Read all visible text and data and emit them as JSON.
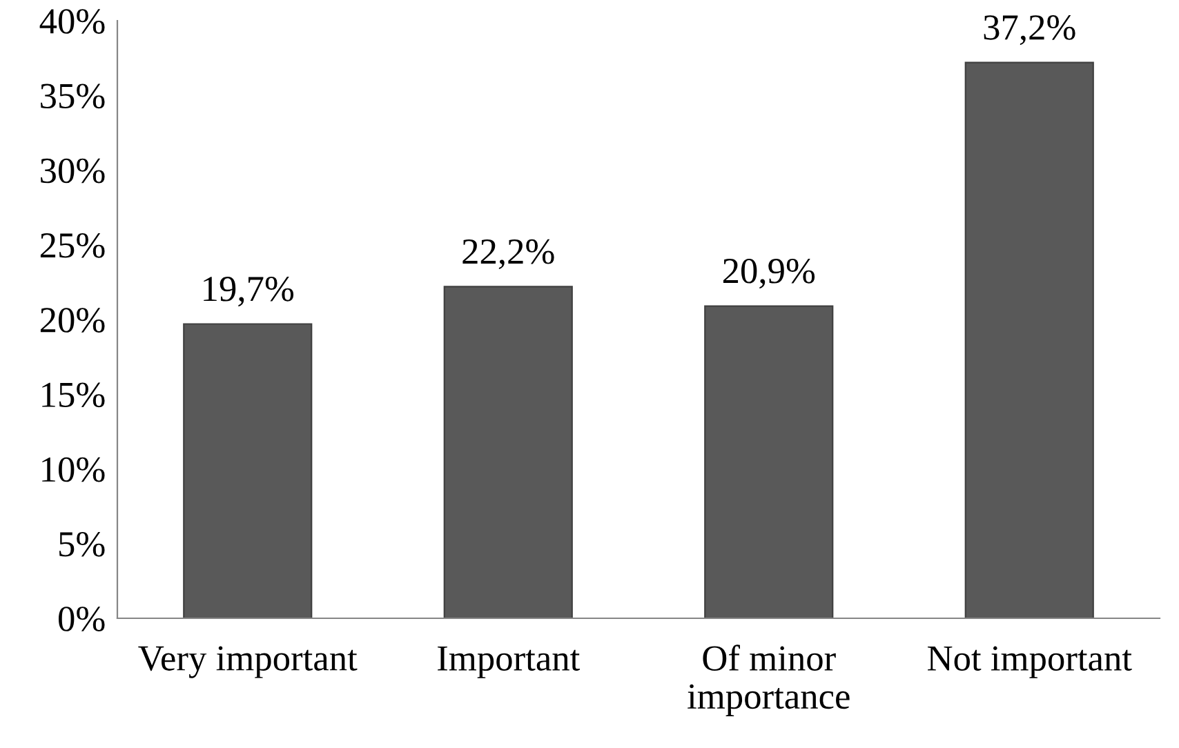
{
  "chart_data": {
    "type": "bar",
    "categories": [
      "Very important",
      "Important",
      "Of minor\nimportance",
      "Not important"
    ],
    "values": [
      19.7,
      22.2,
      20.9,
      37.2
    ],
    "value_labels": [
      "19,7%",
      "22,2%",
      "20,9%",
      "37,2%"
    ],
    "color": "#595959",
    "ylim": [
      0,
      40
    ],
    "yticks": [
      {
        "value": 0,
        "label": "0%"
      },
      {
        "value": 5,
        "label": "5%"
      },
      {
        "value": 10,
        "label": "10%"
      },
      {
        "value": 15,
        "label": "15%"
      },
      {
        "value": 20,
        "label": "20%"
      },
      {
        "value": 25,
        "label": "25%"
      },
      {
        "value": 30,
        "label": "30%"
      },
      {
        "value": 35,
        "label": "35%"
      },
      {
        "value": 40,
        "label": "40%"
      }
    ],
    "grid": false,
    "legend": false
  }
}
